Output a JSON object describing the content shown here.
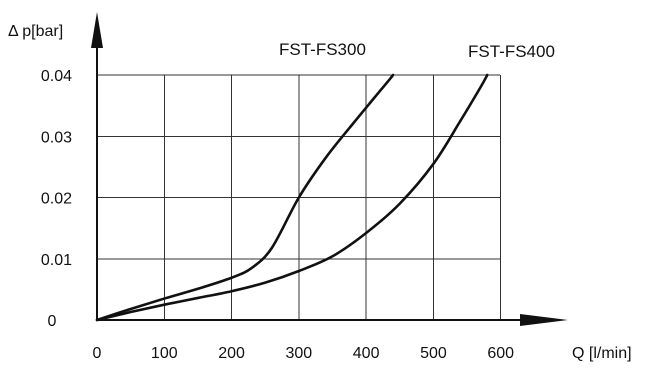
{
  "chart_data": {
    "type": "line",
    "xlabel": "Q [l/min]",
    "ylabel": "Δ p[bar]",
    "x_ticks": [
      "0",
      "100",
      "200",
      "300",
      "400",
      "500",
      "600"
    ],
    "y_ticks": [
      "0",
      "0.01",
      "0.02",
      "0.03",
      "0.04"
    ],
    "xlim": [
      0,
      700
    ],
    "ylim": [
      0,
      0.04
    ],
    "grid": true,
    "colors": {
      "line": "#111111",
      "grid": "#333333",
      "background": "#ffffff"
    },
    "series": [
      {
        "name": "FST-FS300",
        "x": [
          0,
          50,
          100,
          150,
          200,
          230,
          260,
          300,
          340,
          380,
          410,
          435,
          440
        ],
        "y": [
          0,
          0.0018,
          0.0035,
          0.0051,
          0.0069,
          0.0085,
          0.0118,
          0.02,
          0.0265,
          0.032,
          0.036,
          0.0393,
          0.04
        ]
      },
      {
        "name": "FST-FS400",
        "x": [
          0,
          50,
          100,
          150,
          200,
          250,
          300,
          350,
          400,
          450,
          500,
          540,
          570,
          580
        ],
        "y": [
          0,
          0.0013,
          0.0025,
          0.0036,
          0.0047,
          0.0061,
          0.008,
          0.0104,
          0.0142,
          0.019,
          0.0255,
          0.0325,
          0.038,
          0.04
        ]
      }
    ]
  }
}
